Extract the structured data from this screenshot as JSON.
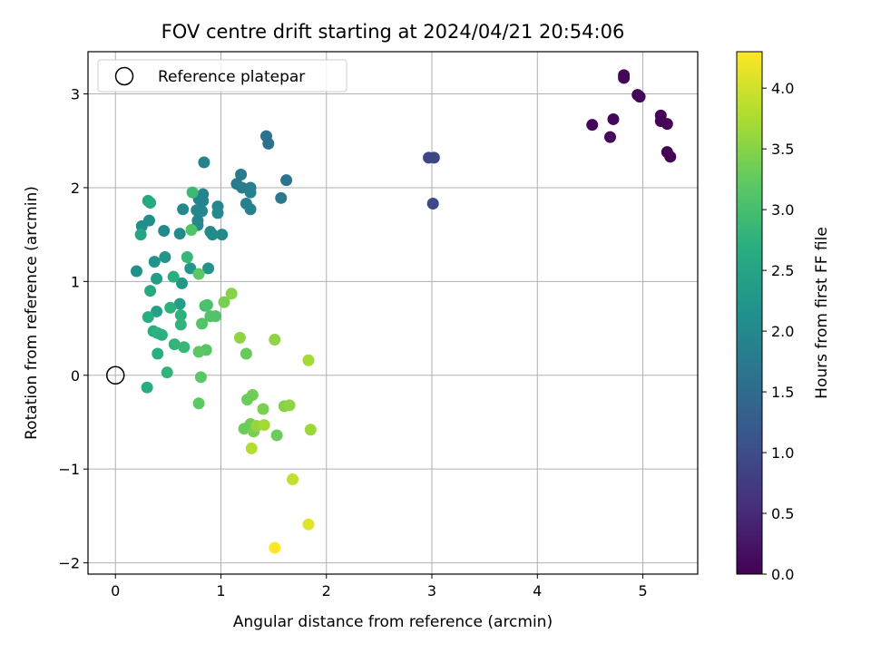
{
  "chart_data": {
    "type": "scatter",
    "title": "FOV centre drift starting at 2024/04/21 20:54:06",
    "xlabel": "Angular distance from reference (arcmin)",
    "ylabel": "Rotation from reference (arcmin)",
    "xlim": [
      -0.26,
      5.52
    ],
    "ylim": [
      -2.12,
      3.45
    ],
    "xticks": [
      0,
      1,
      2,
      3,
      4,
      5
    ],
    "yticks": [
      -2,
      -1,
      0,
      1,
      2,
      3
    ],
    "grid": true,
    "legend": {
      "position": "top-left",
      "label": "Reference platepar"
    },
    "reference_point": {
      "x": 0,
      "y": 0
    },
    "colorbar": {
      "label": "Hours from first FF file",
      "colormap": "viridis",
      "range": [
        0,
        4.3
      ],
      "ticks": [
        0.0,
        0.5,
        1.0,
        1.5,
        2.0,
        2.5,
        3.0,
        3.5,
        4.0
      ],
      "tick_labels": [
        "0.0",
        "0.5",
        "1.0",
        "1.5",
        "2.0",
        "2.5",
        "3.0",
        "3.5",
        "4.0"
      ]
    },
    "points": [
      {
        "x": 4.82,
        "y": 3.2,
        "c": 0.05
      },
      {
        "x": 4.82,
        "y": 3.17,
        "c": 0.06
      },
      {
        "x": 4.95,
        "y": 2.99,
        "c": 0.05
      },
      {
        "x": 4.97,
        "y": 2.97,
        "c": 0.06
      },
      {
        "x": 4.52,
        "y": 2.67,
        "c": 0.08
      },
      {
        "x": 4.72,
        "y": 2.73,
        "c": 0.08
      },
      {
        "x": 4.69,
        "y": 2.54,
        "c": 0.1
      },
      {
        "x": 5.17,
        "y": 2.77,
        "c": 0.04
      },
      {
        "x": 5.17,
        "y": 2.71,
        "c": 0.05
      },
      {
        "x": 5.23,
        "y": 2.68,
        "c": 0.04
      },
      {
        "x": 5.23,
        "y": 2.38,
        "c": 0.03
      },
      {
        "x": 5.26,
        "y": 2.33,
        "c": 0.02
      },
      {
        "x": 2.97,
        "y": 2.32,
        "c": 0.9
      },
      {
        "x": 3.02,
        "y": 2.32,
        "c": 0.92
      },
      {
        "x": 3.01,
        "y": 1.83,
        "c": 0.95
      },
      {
        "x": 1.43,
        "y": 2.55,
        "c": 1.6
      },
      {
        "x": 1.45,
        "y": 2.47,
        "c": 1.62
      },
      {
        "x": 1.62,
        "y": 2.08,
        "c": 1.65
      },
      {
        "x": 1.57,
        "y": 1.89,
        "c": 1.7
      },
      {
        "x": 1.19,
        "y": 2.14,
        "c": 1.75
      },
      {
        "x": 1.15,
        "y": 2.04,
        "c": 1.78
      },
      {
        "x": 1.2,
        "y": 2.0,
        "c": 1.8
      },
      {
        "x": 1.28,
        "y": 2.0,
        "c": 1.82
      },
      {
        "x": 1.28,
        "y": 1.95,
        "c": 1.85
      },
      {
        "x": 1.24,
        "y": 1.83,
        "c": 1.87
      },
      {
        "x": 1.28,
        "y": 1.77,
        "c": 1.88
      },
      {
        "x": 0.84,
        "y": 2.27,
        "c": 1.9
      },
      {
        "x": 0.83,
        "y": 1.93,
        "c": 1.92
      },
      {
        "x": 0.79,
        "y": 1.88,
        "c": 1.93
      },
      {
        "x": 0.83,
        "y": 1.86,
        "c": 1.95
      },
      {
        "x": 0.77,
        "y": 1.76,
        "c": 1.96
      },
      {
        "x": 0.82,
        "y": 1.75,
        "c": 1.97
      },
      {
        "x": 0.78,
        "y": 1.65,
        "c": 1.98
      },
      {
        "x": 0.97,
        "y": 1.8,
        "c": 1.98
      },
      {
        "x": 0.97,
        "y": 1.73,
        "c": 2.0
      },
      {
        "x": 0.64,
        "y": 1.77,
        "c": 2.0
      },
      {
        "x": 0.78,
        "y": 1.6,
        "c": 2.01
      },
      {
        "x": 0.9,
        "y": 1.53,
        "c": 2.02
      },
      {
        "x": 0.92,
        "y": 1.5,
        "c": 2.03
      },
      {
        "x": 1.01,
        "y": 1.5,
        "c": 2.03
      },
      {
        "x": 0.61,
        "y": 1.51,
        "c": 2.04
      },
      {
        "x": 0.46,
        "y": 1.54,
        "c": 2.05
      },
      {
        "x": 0.32,
        "y": 1.65,
        "c": 2.1
      },
      {
        "x": 0.25,
        "y": 1.59,
        "c": 2.12
      },
      {
        "x": 0.24,
        "y": 1.5,
        "c": 2.5
      },
      {
        "x": 0.31,
        "y": 1.86,
        "c": 2.55
      },
      {
        "x": 0.33,
        "y": 1.84,
        "c": 2.6
      },
      {
        "x": 0.2,
        "y": 1.11,
        "c": 2.15
      },
      {
        "x": 0.37,
        "y": 1.21,
        "c": 2.2
      },
      {
        "x": 0.47,
        "y": 1.26,
        "c": 2.22
      },
      {
        "x": 0.71,
        "y": 1.14,
        "c": 2.25
      },
      {
        "x": 0.88,
        "y": 1.14,
        "c": 2.2
      },
      {
        "x": 0.63,
        "y": 0.98,
        "c": 2.28
      },
      {
        "x": 0.39,
        "y": 1.03,
        "c": 2.35
      },
      {
        "x": 0.61,
        "y": 0.76,
        "c": 2.4
      },
      {
        "x": 0.39,
        "y": 0.68,
        "c": 2.42
      },
      {
        "x": 0.68,
        "y": 1.26,
        "c": 2.85
      },
      {
        "x": 0.55,
        "y": 1.05,
        "c": 2.7
      },
      {
        "x": 0.33,
        "y": 0.9,
        "c": 2.6
      },
      {
        "x": 0.52,
        "y": 0.72,
        "c": 2.72
      },
      {
        "x": 0.31,
        "y": 0.62,
        "c": 2.7
      },
      {
        "x": 0.62,
        "y": 0.64,
        "c": 2.75
      },
      {
        "x": 0.62,
        "y": 0.54,
        "c": 2.78
      },
      {
        "x": 0.36,
        "y": 0.47,
        "c": 2.7
      },
      {
        "x": 0.4,
        "y": 0.45,
        "c": 2.75
      },
      {
        "x": 0.44,
        "y": 0.43,
        "c": 2.72
      },
      {
        "x": 0.56,
        "y": 0.33,
        "c": 2.8
      },
      {
        "x": 0.65,
        "y": 0.3,
        "c": 2.85
      },
      {
        "x": 0.4,
        "y": 0.23,
        "c": 2.68
      },
      {
        "x": 0.49,
        "y": 0.03,
        "c": 2.78
      },
      {
        "x": 0.3,
        "y": -0.13,
        "c": 2.65
      },
      {
        "x": 0.73,
        "y": 1.95,
        "c": 2.9
      },
      {
        "x": 0.72,
        "y": 1.55,
        "c": 3.1
      },
      {
        "x": 0.79,
        "y": 1.08,
        "c": 3.2
      },
      {
        "x": 0.85,
        "y": 0.74,
        "c": 3.0
      },
      {
        "x": 0.87,
        "y": 0.75,
        "c": 3.05
      },
      {
        "x": 0.9,
        "y": 0.63,
        "c": 3.08
      },
      {
        "x": 0.95,
        "y": 0.63,
        "c": 3.1
      },
      {
        "x": 0.82,
        "y": 0.55,
        "c": 3.12
      },
      {
        "x": 1.03,
        "y": 0.78,
        "c": 3.4
      },
      {
        "x": 1.1,
        "y": 0.87,
        "c": 3.5
      },
      {
        "x": 0.86,
        "y": 0.27,
        "c": 3.15
      },
      {
        "x": 0.79,
        "y": 0.25,
        "c": 3.2
      },
      {
        "x": 0.81,
        "y": -0.02,
        "c": 3.18
      },
      {
        "x": 0.79,
        "y": -0.3,
        "c": 3.22
      },
      {
        "x": 1.18,
        "y": 0.4,
        "c": 3.55
      },
      {
        "x": 1.24,
        "y": 0.23,
        "c": 3.28
      },
      {
        "x": 1.51,
        "y": 0.38,
        "c": 3.55
      },
      {
        "x": 1.83,
        "y": 0.16,
        "c": 3.7
      },
      {
        "x": 1.3,
        "y": -0.21,
        "c": 3.35
      },
      {
        "x": 1.25,
        "y": -0.26,
        "c": 3.3
      },
      {
        "x": 1.4,
        "y": -0.36,
        "c": 3.4
      },
      {
        "x": 1.6,
        "y": -0.33,
        "c": 3.5
      },
      {
        "x": 1.65,
        "y": -0.32,
        "c": 3.55
      },
      {
        "x": 1.28,
        "y": -0.52,
        "c": 3.35
      },
      {
        "x": 1.22,
        "y": -0.57,
        "c": 3.3
      },
      {
        "x": 1.31,
        "y": -0.6,
        "c": 3.4
      },
      {
        "x": 1.34,
        "y": -0.54,
        "c": 3.6
      },
      {
        "x": 1.41,
        "y": -0.53,
        "c": 3.7
      },
      {
        "x": 1.53,
        "y": -0.64,
        "c": 3.3
      },
      {
        "x": 1.85,
        "y": -0.58,
        "c": 3.65
      },
      {
        "x": 1.29,
        "y": -0.78,
        "c": 3.8
      },
      {
        "x": 1.68,
        "y": -1.11,
        "c": 3.9
      },
      {
        "x": 1.83,
        "y": -1.59,
        "c": 4.1
      },
      {
        "x": 1.51,
        "y": -1.84,
        "c": 4.3
      }
    ]
  }
}
